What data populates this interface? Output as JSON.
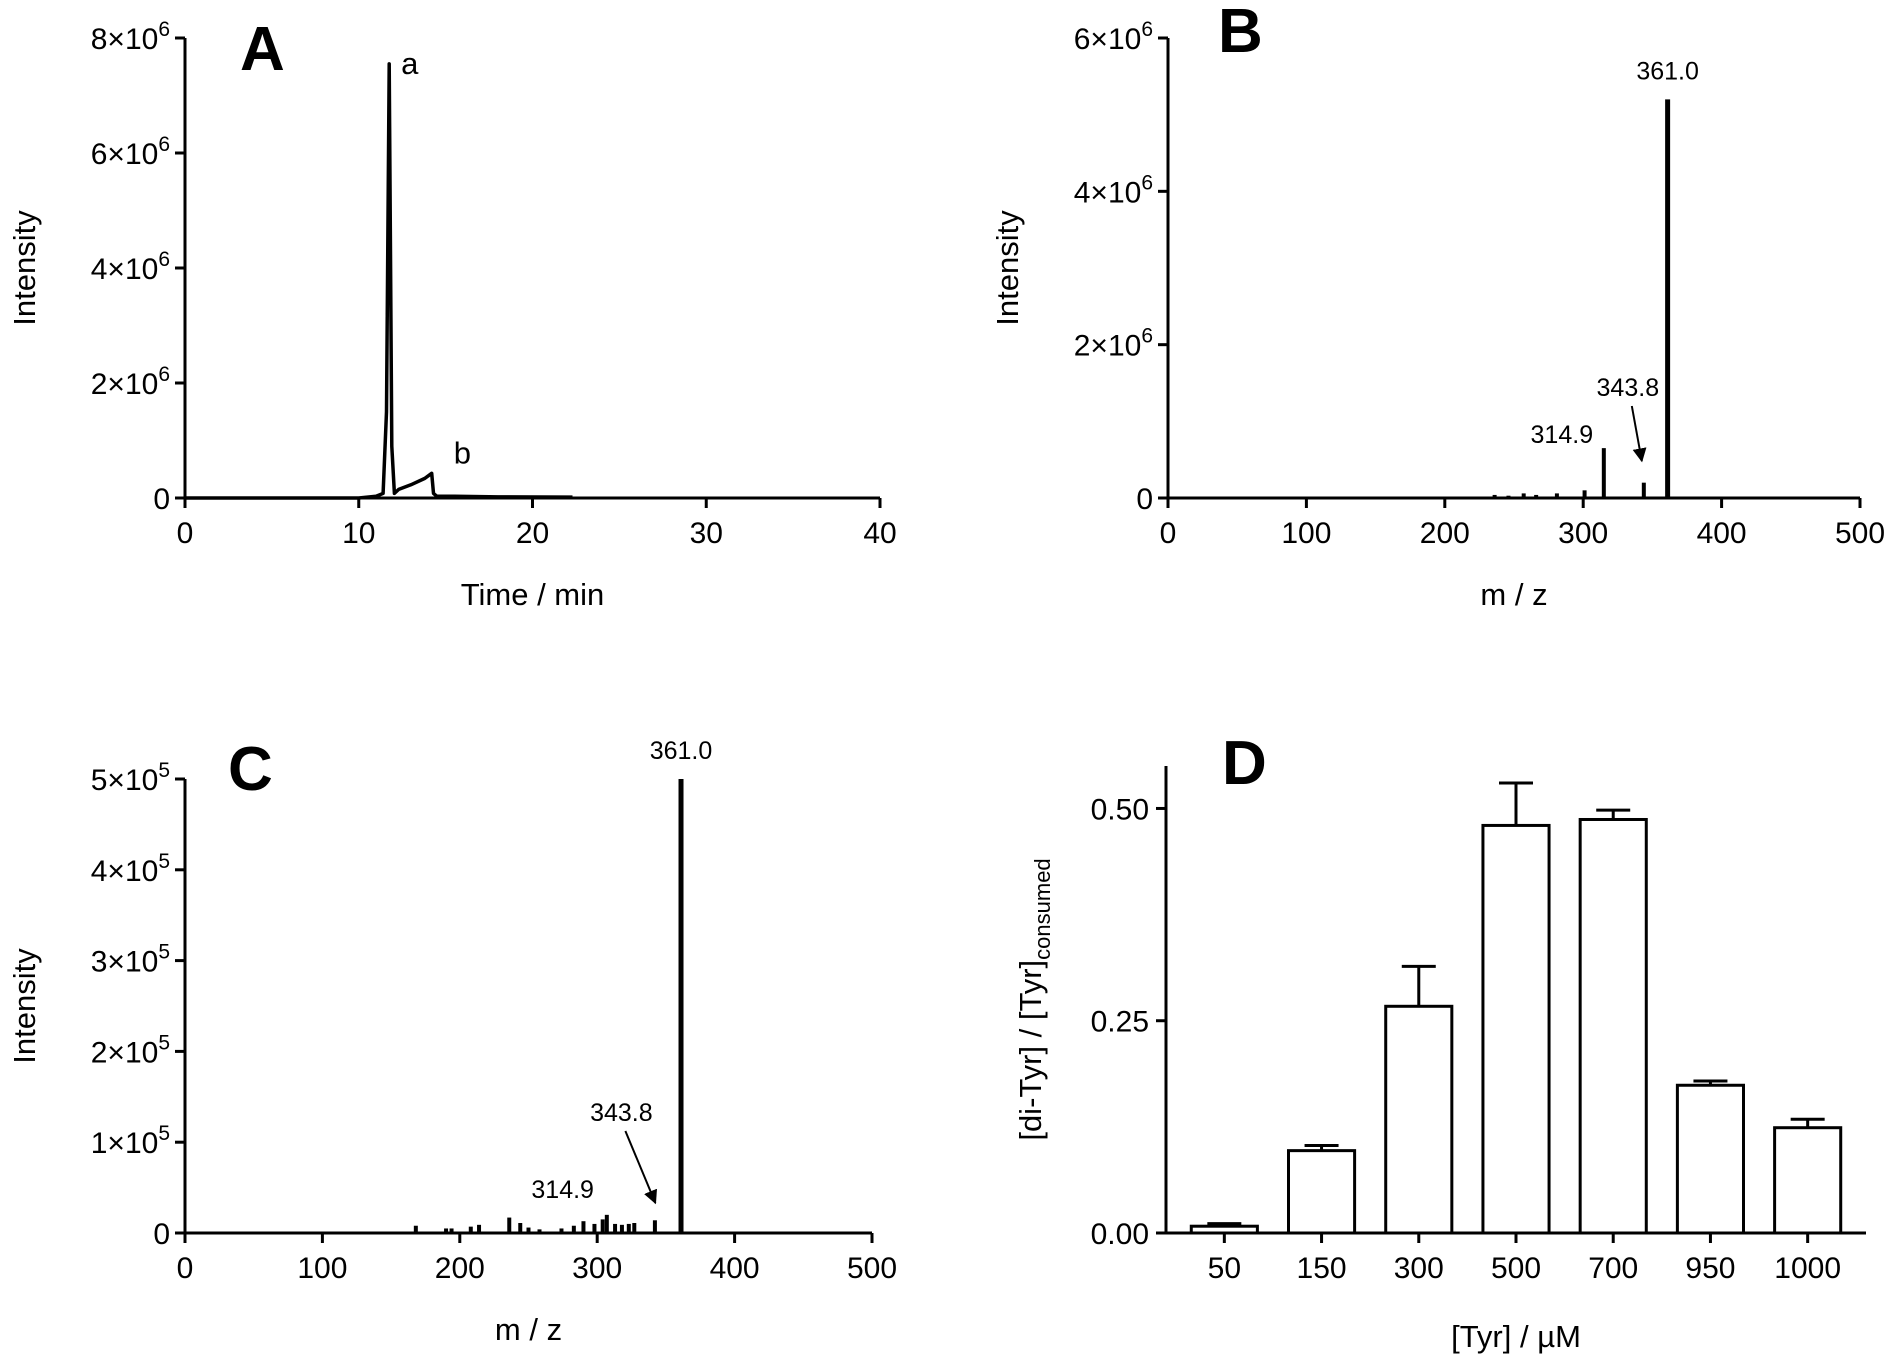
{
  "chart_data": [
    {
      "panel": "A",
      "type": "line",
      "xlabel": "Time / min",
      "ylabel": "Intensity",
      "xlim": [
        0,
        40
      ],
      "ylim": [
        0,
        8000000
      ],
      "xticks": [
        "0",
        "10",
        "20",
        "30",
        "40"
      ],
      "yticks": [
        {
          "base": "0",
          "exp": ""
        },
        {
          "base": "2×10",
          "exp": "6"
        },
        {
          "base": "4×10",
          "exp": "6"
        },
        {
          "base": "6×10",
          "exp": "6"
        },
        {
          "base": "8×10",
          "exp": "6"
        }
      ],
      "series": [
        {
          "x": [
            0,
            10.0,
            11.0,
            11.4,
            11.6,
            11.75,
            11.9,
            12.05,
            12.3,
            13.0,
            13.8,
            14.2,
            14.3,
            14.5,
            15.5,
            18,
            22.3
          ],
          "y": [
            0,
            0,
            30000,
            80000,
            1500000,
            7550000,
            900000,
            80000,
            150000,
            230000,
            340000,
            430000,
            80000,
            30000,
            30000,
            20000,
            15000
          ]
        }
      ],
      "annotations": [
        {
          "text": "a",
          "x": 11.75,
          "y": 7550000
        },
        {
          "text": "b",
          "x": 14.2,
          "y": 430000
        }
      ],
      "grid": false
    },
    {
      "panel": "B",
      "type": "bar",
      "xlabel": "m / z",
      "ylabel": "Intensity",
      "xlim": [
        0,
        500
      ],
      "ylim": [
        0,
        6000000
      ],
      "xticks": [
        "0",
        "100",
        "200",
        "300",
        "400",
        "500"
      ],
      "yticks": [
        {
          "base": "0",
          "exp": ""
        },
        {
          "base": "2×10",
          "exp": "6"
        },
        {
          "base": "4×10",
          "exp": "6"
        },
        {
          "base": "6×10",
          "exp": "6"
        }
      ],
      "x": [
        236,
        246,
        257,
        266,
        281,
        301,
        314.9,
        343.8,
        361.0
      ],
      "values": [
        40000,
        30000,
        60000,
        40000,
        60000,
        100000,
        650000,
        200000,
        5200000
      ],
      "annotations": [
        {
          "text": "361.0",
          "x": 361.0
        },
        {
          "text": "343.8",
          "x": 343.8,
          "arrow": true
        },
        {
          "text": "314.9",
          "x": 314.9
        }
      ],
      "grid": false
    },
    {
      "panel": "C",
      "type": "bar",
      "xlabel": "m / z",
      "ylabel": "Intensity",
      "xlim": [
        0,
        500
      ],
      "ylim": [
        0,
        500000
      ],
      "xticks": [
        "0",
        "100",
        "200",
        "300",
        "400",
        "500"
      ],
      "yticks": [
        {
          "base": "0",
          "exp": ""
        },
        {
          "base": "1×10",
          "exp": "5"
        },
        {
          "base": "2×10",
          "exp": "5"
        },
        {
          "base": "3×10",
          "exp": "5"
        },
        {
          "base": "4×10",
          "exp": "5"
        },
        {
          "base": "5×10",
          "exp": "5"
        }
      ],
      "x": [
        168,
        190,
        194,
        208,
        214,
        236,
        244,
        250,
        258,
        274,
        283,
        290,
        298,
        304,
        307,
        313,
        318,
        323,
        327,
        342,
        361.0
      ],
      "values": [
        8000,
        5000,
        5000,
        7000,
        9000,
        17000,
        11000,
        6000,
        4000,
        5000,
        8000,
        13000,
        10000,
        15000,
        20000,
        10000,
        9000,
        10000,
        11000,
        14000,
        500000
      ],
      "annotations": [
        {
          "text": "361.0",
          "x": 361.0
        },
        {
          "text": "343.8",
          "x": 343.8,
          "arrow": true
        },
        {
          "text": "314.9",
          "x": 314.9
        }
      ],
      "grid": false
    },
    {
      "panel": "D",
      "type": "bar",
      "xlabel": "[Tyr] / µM",
      "ylabel": "[di-Tyr] / [Tyr]",
      "ylabel_subscript": "consumed",
      "ylim": [
        0,
        0.55
      ],
      "yticks": [
        "0.00",
        "0.25",
        "0.50"
      ],
      "categories": [
        "50",
        "150",
        "300",
        "500",
        "700",
        "950",
        "1000"
      ],
      "values": [
        0.008,
        0.097,
        0.267,
        0.48,
        0.487,
        0.174,
        0.124
      ],
      "errors": [
        0.003,
        0.006,
        0.047,
        0.05,
        0.011,
        0.005,
        0.01
      ],
      "grid": false
    }
  ]
}
